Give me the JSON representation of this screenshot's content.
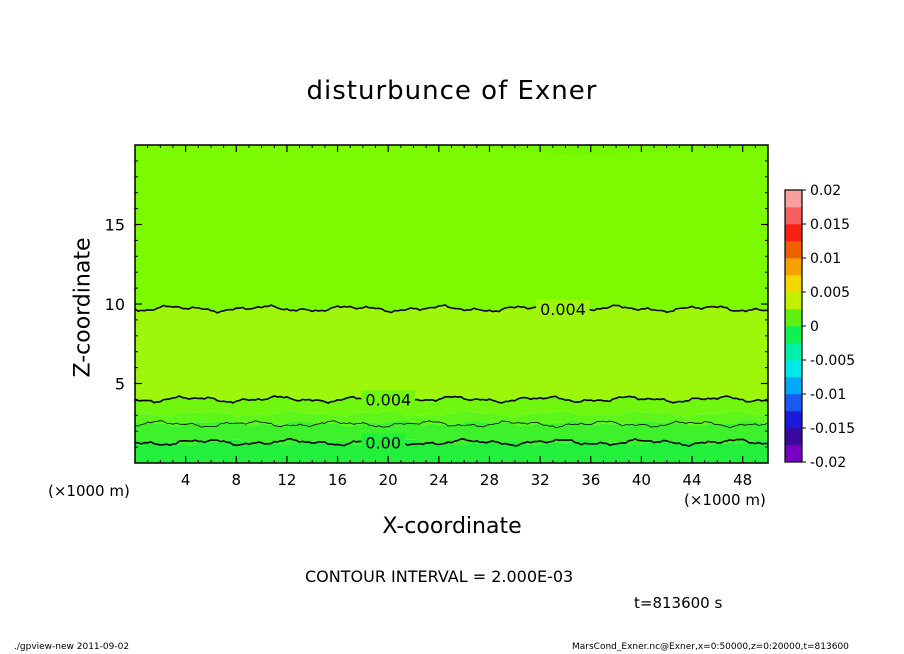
{
  "chart_data": {
    "type": "heatmap",
    "title": "disturbunce of Exner",
    "xlabel": "X-coordinate",
    "ylabel": "Z-coordinate",
    "x_unit": "(×1000 m)",
    "y_unit": "(×1000 m)",
    "xlim": [
      0,
      50
    ],
    "ylim": [
      0,
      20
    ],
    "x_ticks": [
      4,
      8,
      12,
      16,
      20,
      24,
      28,
      32,
      36,
      40,
      44,
      48
    ],
    "y_ticks": [
      5,
      10,
      15
    ],
    "colorbar": {
      "range": [
        -0.02,
        0.02
      ],
      "tick_labels": [
        "0.02",
        "0.015",
        "0.01",
        "0.005",
        "0",
        "-0.005",
        "-0.01",
        "-0.015",
        "-0.02"
      ],
      "tick_values": [
        0.02,
        0.015,
        0.01,
        0.005,
        0,
        -0.005,
        -0.01,
        -0.015,
        -0.02
      ]
    },
    "bands": [
      {
        "z_range": [
          0.0,
          1.3
        ],
        "value": -0.001,
        "color": "#22f03a"
      },
      {
        "z_range": [
          1.3,
          2.5
        ],
        "value": 0.001,
        "color": "#3df22a"
      },
      {
        "z_range": [
          2.5,
          3.1
        ],
        "value": 0.003,
        "color": "#5cf61a"
      },
      {
        "z_range": [
          3.1,
          4.1
        ],
        "value": 0.004,
        "color": "#6ff70f"
      },
      {
        "z_range": [
          4.1,
          9.7
        ],
        "value": 0.0055,
        "color": "#9ef70a"
      },
      {
        "z_range": [
          9.7,
          20.0
        ],
        "value": 0.0045,
        "color": "#7cfb00"
      }
    ],
    "contours": [
      {
        "label": "0.00",
        "z": 1.3,
        "label_x": 18.2
      },
      {
        "label": "0.004",
        "z": 4.0,
        "label_x": 18.2
      },
      {
        "label": "0.004",
        "z": 9.7,
        "label_x": 32.0
      },
      {
        "label": "",
        "z": 2.45,
        "label_x": null
      }
    ]
  },
  "contour_interval_text": "CONTOUR INTERVAL = 2.000E-03",
  "time_text": "t=813600 s",
  "footer": {
    "left": "./gpview-new   2011-09-02",
    "right": "MarsCond_Exner.nc@Exner,x=0:50000,z=0:20000,t=813600"
  },
  "colors": {
    "colorbar": [
      "#7a00c8",
      "#3a0aa0",
      "#1a1ad8",
      "#1a5af0",
      "#00a8f8",
      "#00e8e8",
      "#00f0a8",
      "#10f050",
      "#60f010",
      "#c0f000",
      "#f0d800",
      "#f8a000",
      "#f06000",
      "#f82010",
      "#f86060",
      "#f8a0a0"
    ]
  }
}
